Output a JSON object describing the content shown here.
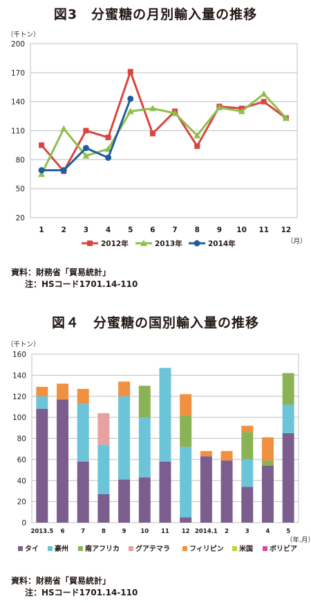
{
  "chart1": {
    "title": "図3　分蜜糖の月別輸入量の推移",
    "unit": "（千トン）",
    "x_unit": "（月）",
    "source": "資料：財務省「貿易統計」",
    "note": "注：HSコード1701.14-110"
  },
  "chart2": {
    "title": "図４　分蜜糖の国別輸入量の推移",
    "unit": "（千トン）",
    "x_unit": "（年.月）",
    "source": "資料：財務省「貿易統計」",
    "note": "注：HSコード1701.14-110"
  },
  "chart_data": [
    {
      "type": "line",
      "title": "図3　分蜜糖の月別輸入量の推移",
      "ylabel": "（千トン）",
      "xlabel": "（月）",
      "ylim": [
        20,
        200
      ],
      "yticks": [
        20,
        50,
        80,
        110,
        140,
        170,
        200
      ],
      "categories": [
        "1",
        "2",
        "3",
        "4",
        "5",
        "6",
        "7",
        "8",
        "9",
        "10",
        "11",
        "12"
      ],
      "grid": true,
      "legend": "bottom",
      "series": [
        {
          "name": "2012年",
          "color": "#d9453f",
          "marker": "square",
          "values": [
            95,
            68,
            110,
            103,
            171,
            107,
            130,
            94,
            135,
            133,
            140,
            123
          ]
        },
        {
          "name": "2013年",
          "color": "#8dbf4b",
          "marker": "triangle",
          "values": [
            65,
            112,
            84,
            91,
            130,
            133,
            128,
            105,
            134,
            130,
            148,
            123
          ]
        },
        {
          "name": "2014年",
          "color": "#1f5e9a",
          "marker": "circle",
          "values": [
            69,
            69,
            92,
            82,
            143,
            null,
            null,
            null,
            null,
            null,
            null,
            null
          ]
        }
      ]
    },
    {
      "type": "bar",
      "stacked": true,
      "title": "図４　分蜜糖の国別輸入量の推移",
      "ylabel": "（千トン）",
      "xlabel": "（年.月）",
      "ylim": [
        0,
        160
      ],
      "yticks": [
        0,
        20,
        40,
        60,
        80,
        100,
        120,
        140,
        160
      ],
      "categories": [
        "2013.5",
        "6",
        "7",
        "8",
        "9",
        "10",
        "11",
        "12",
        "2014.1",
        "2",
        "3",
        "4",
        "5"
      ],
      "grid": true,
      "legend": "bottom",
      "series": [
        {
          "name": "タイ",
          "color": "#7b5e8e",
          "values": [
            108,
            117,
            58,
            27,
            41,
            43,
            58,
            5,
            63,
            59,
            34,
            54,
            85
          ]
        },
        {
          "name": "豪州",
          "color": "#6cc4d9",
          "values": [
            12,
            0,
            55,
            47,
            79,
            57,
            89,
            67,
            0,
            0,
            26,
            0,
            27
          ]
        },
        {
          "name": "南アフリカ",
          "color": "#8ab356",
          "values": [
            0,
            0,
            0,
            0,
            0,
            30,
            0,
            30,
            0,
            0,
            26,
            5,
            30
          ]
        },
        {
          "name": "グアテマラ",
          "color": "#e8a0a0",
          "values": [
            0,
            0,
            0,
            30,
            0,
            0,
            0,
            0,
            0,
            0,
            0,
            0,
            0
          ]
        },
        {
          "name": "フィリピン",
          "color": "#ef9140",
          "values": [
            9,
            15,
            14,
            0,
            14,
            0,
            0,
            20,
            5,
            9,
            6,
            22,
            0
          ]
        },
        {
          "name": "米国",
          "color": "#c3d13e",
          "values": [
            0,
            0,
            0,
            0,
            0,
            0,
            0,
            0,
            0,
            0,
            0,
            0,
            0
          ]
        },
        {
          "name": "ボリビア",
          "color": "#d94a9a",
          "values": [
            0,
            0,
            0,
            0,
            0,
            0,
            0,
            0,
            0,
            0,
            0,
            0,
            0
          ]
        }
      ]
    }
  ]
}
